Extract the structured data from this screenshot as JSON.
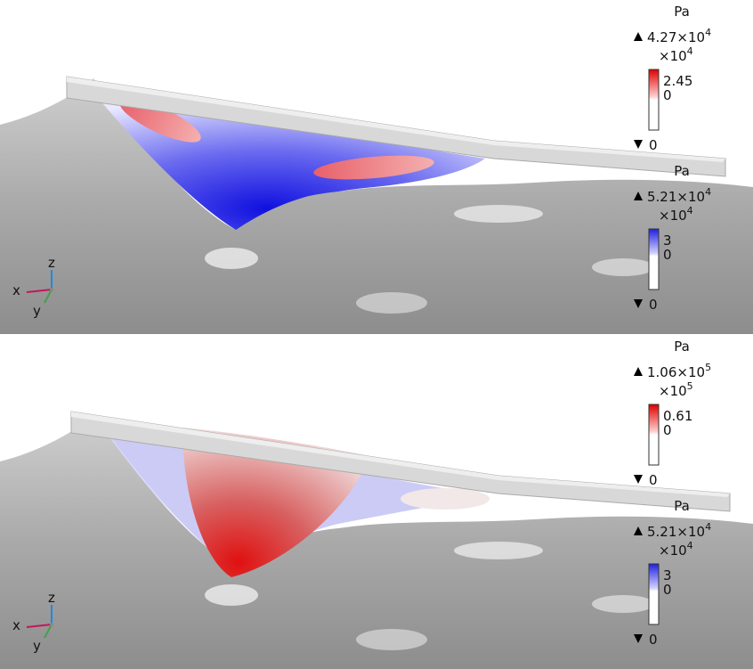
{
  "panels": [
    {
      "axes": {
        "x": "x",
        "y": "y",
        "z": "z"
      },
      "legends": [
        {
          "unit": "Pa",
          "max": {
            "base": "4.27×10",
            "exp": "4"
          },
          "scale": {
            "base": "×10",
            "exp": "4"
          },
          "ticks": [
            "2.45",
            "0"
          ],
          "min": "0"
        },
        {
          "unit": "Pa",
          "max": {
            "base": "5.21×10",
            "exp": "4"
          },
          "scale": {
            "base": "×10",
            "exp": "4"
          },
          "ticks": [
            "3",
            "0"
          ],
          "min": "0"
        }
      ]
    },
    {
      "axes": {
        "x": "x",
        "y": "y",
        "z": "z"
      },
      "legends": [
        {
          "unit": "Pa",
          "max": {
            "base": "1.06×10",
            "exp": "5"
          },
          "scale": {
            "base": "×10",
            "exp": "5"
          },
          "ticks": [
            "0.61",
            "0"
          ],
          "min": "0"
        },
        {
          "unit": "Pa",
          "max": {
            "base": "5.21×10",
            "exp": "4"
          },
          "scale": {
            "base": "×10",
            "exp": "4"
          },
          "ticks": [
            "3",
            "0"
          ],
          "min": "0"
        }
      ]
    }
  ]
}
